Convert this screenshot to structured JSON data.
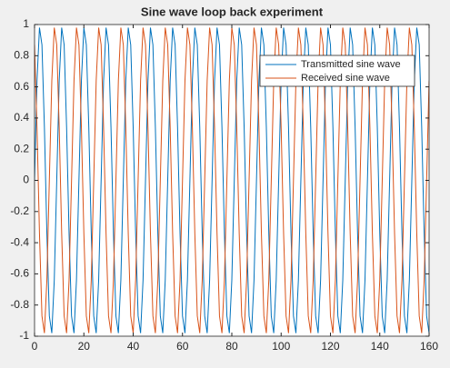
{
  "chart_data": {
    "type": "line",
    "title": "Sine wave loop back experiment",
    "x": [
      0,
      1,
      2,
      3,
      4,
      5,
      6,
      7,
      8,
      9,
      10,
      11,
      12,
      13,
      14,
      15,
      16,
      17,
      18,
      19,
      20,
      21,
      22,
      23,
      24,
      25,
      26,
      27,
      28,
      29,
      30,
      31,
      32,
      33,
      34,
      35,
      36,
      37,
      38,
      39,
      40,
      41,
      42,
      43,
      44,
      45,
      46,
      47,
      48,
      49,
      50,
      51,
      52,
      53,
      54,
      55,
      56,
      57,
      58,
      59,
      60,
      61,
      62,
      63,
      64,
      65,
      66,
      67,
      68,
      69,
      70,
      71,
      72,
      73,
      74,
      75,
      76,
      77,
      78,
      79,
      80,
      81,
      82,
      83,
      84,
      85,
      86,
      87,
      88,
      89,
      90,
      91,
      92,
      93,
      94,
      95,
      96,
      97,
      98,
      99,
      100,
      101,
      102,
      103,
      104,
      105,
      106,
      107,
      108,
      109,
      110,
      111,
      112,
      113,
      114,
      115,
      116,
      117,
      118,
      119,
      120,
      121,
      122,
      123,
      124,
      125,
      126,
      127,
      128,
      129,
      130,
      131,
      132,
      133,
      134,
      135,
      136,
      137,
      138,
      139,
      140,
      141,
      142,
      143,
      144,
      145,
      146,
      147,
      148,
      149,
      150,
      151,
      152,
      153,
      154,
      155,
      156,
      157,
      158,
      159,
      160
    ],
    "series": [
      {
        "name": "Transmitted sine wave",
        "color": "#0072bd",
        "values": [
          0,
          0.64,
          0.98,
          0.87,
          0.34,
          -0.34,
          -0.87,
          -0.98,
          -0.64,
          0,
          0.64,
          0.98,
          0.87,
          0.34,
          -0.34,
          -0.87,
          -0.98,
          -0.64,
          0,
          0.64,
          0.98,
          0.87,
          0.34,
          -0.34,
          -0.87,
          -0.98,
          -0.64,
          0,
          0.64,
          0.98,
          0.87,
          0.34,
          -0.34,
          -0.87,
          -0.98,
          -0.64,
          0,
          0.64,
          0.98,
          0.87,
          0.34,
          -0.34,
          -0.87,
          -0.98,
          -0.64,
          0,
          0.64,
          0.98,
          0.87,
          0.34,
          -0.34,
          -0.87,
          -0.98,
          -0.64,
          0,
          0.64,
          0.98,
          0.87,
          0.34,
          -0.34,
          -0.87,
          -0.98,
          -0.64,
          0,
          0.64,
          0.98,
          0.87,
          0.34,
          -0.34,
          -0.87,
          -0.98,
          -0.64,
          0,
          0.64,
          0.98,
          0.87,
          0.34,
          -0.34,
          -0.87,
          -0.98,
          -0.64,
          0,
          0.64,
          0.98,
          0.87,
          0.34,
          -0.34,
          -0.87,
          -0.98,
          -0.64,
          0,
          0.64,
          0.98,
          0.87,
          0.34,
          -0.34,
          -0.87,
          -0.98,
          -0.64,
          0,
          0.64,
          0.98,
          0.87,
          0.34,
          -0.34,
          -0.87,
          -0.98,
          -0.64,
          0,
          0.64,
          0.98,
          0.87,
          0.34,
          -0.34,
          -0.87,
          -0.98,
          -0.64,
          0,
          0.64,
          0.98,
          0.87,
          0.34,
          -0.34,
          -0.87,
          -0.98,
          -0.64,
          0,
          0.64,
          0.98,
          0.87,
          0.34,
          -0.34,
          -0.87,
          -0.98,
          -0.64,
          0,
          0.64,
          0.98,
          0.87,
          0.34,
          -0.34,
          -0.87,
          -0.98,
          -0.64,
          0,
          0.64,
          0.98,
          0.87,
          0.34,
          -0.34,
          -0.87,
          -0.98,
          -0.64,
          0,
          0.64,
          0.98,
          0.87,
          0.34,
          -0.34,
          -0.87,
          -0.98
        ]
      },
      {
        "name": "Received sine wave",
        "color": "#d95319",
        "values": [
          0.87,
          0.34,
          -0.34,
          -0.87,
          -0.98,
          -0.64,
          0,
          0.64,
          0.98,
          0.87,
          0.34,
          -0.34,
          -0.87,
          -0.98,
          -0.64,
          0,
          0.64,
          0.98,
          0.87,
          0.34,
          -0.34,
          -0.87,
          -0.98,
          -0.64,
          0,
          0.64,
          0.98,
          0.87,
          0.34,
          -0.34,
          -0.87,
          -0.98,
          -0.64,
          0,
          0.64,
          0.98,
          0.87,
          0.34,
          -0.34,
          -0.87,
          -0.98,
          -0.64,
          0,
          0.64,
          0.98,
          0.87,
          0.34,
          -0.34,
          -0.87,
          -0.98,
          -0.64,
          0,
          0.64,
          0.98,
          0.87,
          0.34,
          -0.34,
          -0.87,
          -0.98,
          -0.64,
          0,
          0.64,
          0.98,
          0.87,
          0.34,
          -0.34,
          -0.87,
          -0.98,
          -0.64,
          0,
          0.64,
          0.98,
          0.87,
          0.34,
          -0.34,
          -0.87,
          -0.98,
          -0.64,
          0,
          0.64,
          0.98,
          0.87,
          0.34,
          -0.34,
          -0.87,
          -0.98,
          -0.64,
          0,
          0.64,
          0.98,
          0.87,
          0.34,
          -0.34,
          -0.87,
          -0.98,
          -0.64,
          0,
          0.64,
          0.98,
          0.87,
          0.34,
          -0.34,
          -0.87,
          -0.98,
          -0.64,
          0,
          0.64,
          0.98,
          0.87,
          0.34,
          -0.34,
          -0.87,
          -0.98,
          -0.64,
          0,
          0.64,
          0.98,
          0.87,
          0.34,
          -0.34,
          -0.87,
          -0.98,
          -0.64,
          0,
          0.64,
          0.98,
          0.87,
          0.34,
          -0.34,
          -0.87,
          -0.98,
          -0.64,
          0,
          0.64,
          0.98,
          0.87,
          0.34,
          -0.34,
          -0.87,
          -0.98,
          -0.64,
          0,
          0.64,
          0.98,
          0.87,
          0.34,
          -0.34,
          -0.87,
          -0.98,
          -0.64,
          0,
          0.64,
          0.98,
          0.87,
          0.34,
          -0.34,
          -0.87,
          -0.98,
          -0.64,
          0,
          0.64
        ]
      }
    ],
    "xlim": [
      0,
      160
    ],
    "xticks": [
      0,
      20,
      40,
      60,
      80,
      100,
      120,
      140,
      160
    ],
    "ylim": [
      -1,
      1
    ],
    "yticks": [
      -1,
      -0.8,
      -0.6,
      -0.4,
      -0.2,
      0,
      0.2,
      0.4,
      0.6,
      0.8,
      1
    ],
    "grid": false,
    "legend": "northeast"
  }
}
